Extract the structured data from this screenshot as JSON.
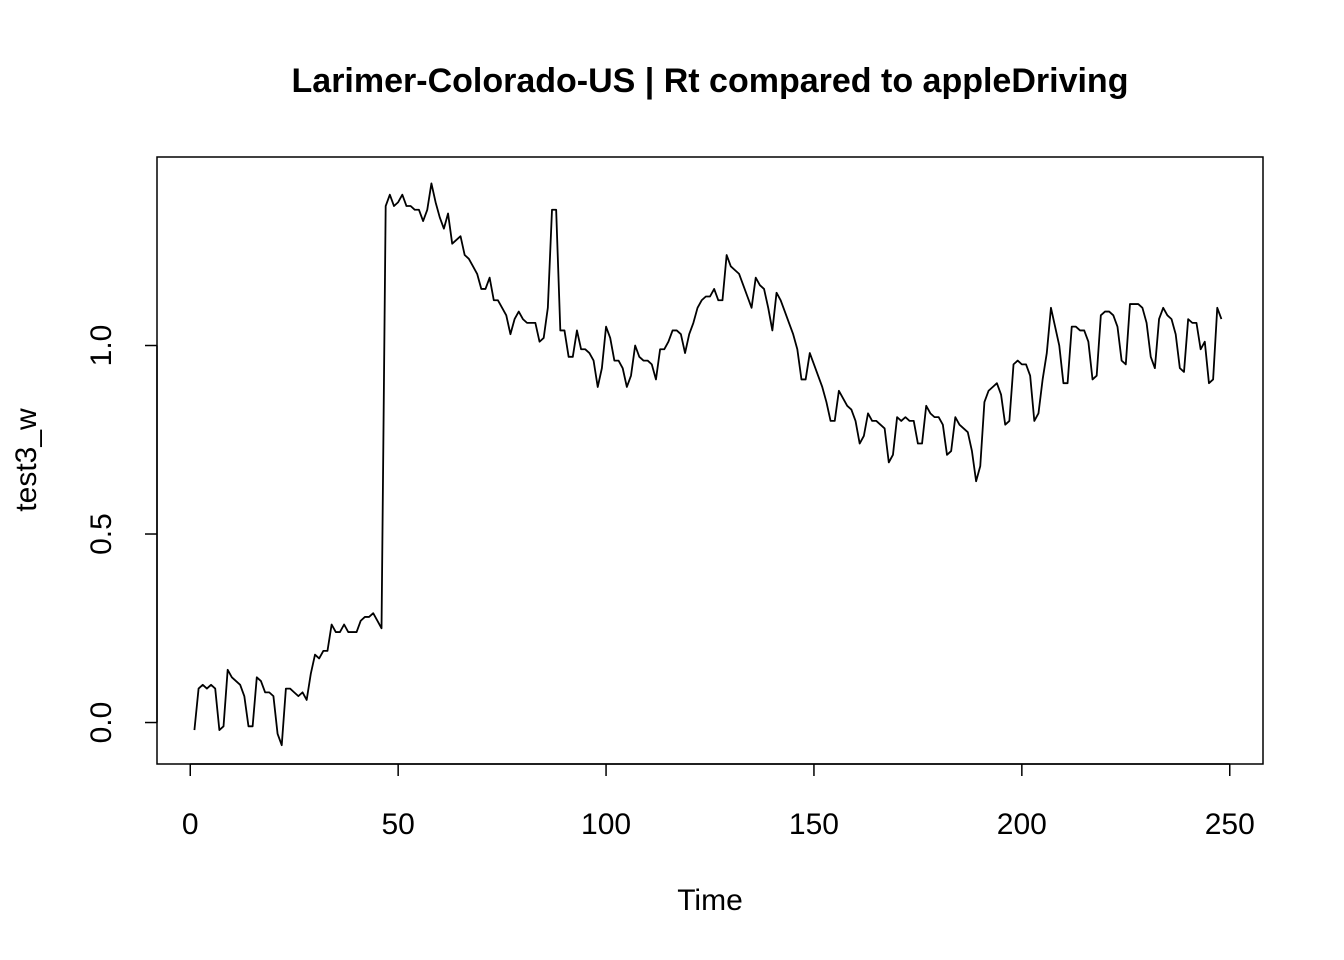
{
  "chart_data": {
    "type": "line",
    "title": "Larimer-Colorado-US | Rt compared to appleDriving",
    "xlabel": "Time",
    "ylabel": "test3_w",
    "xlim": [
      -8,
      258
    ],
    "ylim": [
      -0.11,
      1.5
    ],
    "x_ticks": [
      0,
      50,
      100,
      150,
      200,
      250
    ],
    "x_tick_labels": [
      "0",
      "50",
      "100",
      "150",
      "200",
      "250"
    ],
    "y_ticks": [
      0.0,
      0.5,
      1.0
    ],
    "y_tick_labels": [
      "0.0",
      "0.5",
      "1.0"
    ],
    "grid": false,
    "legend": "none",
    "series": [
      {
        "color": "#000000",
        "x": [
          1,
          2,
          3,
          4,
          5,
          6,
          7,
          8,
          9,
          10,
          11,
          12,
          13,
          14,
          15,
          16,
          17,
          18,
          19,
          20,
          21,
          22,
          23,
          24,
          25,
          26,
          27,
          28,
          29,
          30,
          31,
          32,
          33,
          34,
          35,
          36,
          37,
          38,
          39,
          40,
          41,
          42,
          43,
          44,
          45,
          46,
          47,
          48,
          49,
          50,
          51,
          52,
          53,
          54,
          55,
          56,
          57,
          58,
          59,
          60,
          61,
          62,
          63,
          64,
          65,
          66,
          67,
          68,
          69,
          70,
          71,
          72,
          73,
          74,
          75,
          76,
          77,
          78,
          79,
          80,
          81,
          82,
          83,
          84,
          85,
          86,
          87,
          88,
          89,
          90,
          91,
          92,
          93,
          94,
          95,
          96,
          97,
          98,
          99,
          100,
          101,
          102,
          103,
          104,
          105,
          106,
          107,
          108,
          109,
          110,
          111,
          112,
          113,
          114,
          115,
          116,
          117,
          118,
          119,
          120,
          121,
          122,
          123,
          124,
          125,
          126,
          127,
          128,
          129,
          130,
          131,
          132,
          133,
          134,
          135,
          136,
          137,
          138,
          139,
          140,
          141,
          142,
          143,
          144,
          145,
          146,
          147,
          148,
          149,
          150,
          151,
          152,
          153,
          154,
          155,
          156,
          157,
          158,
          159,
          160,
          161,
          162,
          163,
          164,
          165,
          166,
          167,
          168,
          169,
          170,
          171,
          172,
          173,
          174,
          175,
          176,
          177,
          178,
          179,
          180,
          181,
          182,
          183,
          184,
          185,
          186,
          187,
          188,
          189,
          190,
          191,
          192,
          193,
          194,
          195,
          196,
          197,
          198,
          199,
          200,
          201,
          202,
          203,
          204,
          205,
          206,
          207,
          208,
          209,
          210,
          211,
          212,
          213,
          214,
          215,
          216,
          217,
          218,
          219,
          220,
          221,
          222,
          223,
          224,
          225,
          226,
          227,
          228,
          229,
          230,
          231,
          232,
          233,
          234,
          235,
          236,
          237,
          238,
          239,
          240,
          241,
          242,
          243,
          244,
          245,
          246,
          247,
          248
        ],
        "y": [
          -0.02,
          0.09,
          0.1,
          0.09,
          0.1,
          0.09,
          -0.02,
          -0.01,
          0.14,
          0.12,
          0.11,
          0.1,
          0.07,
          -0.01,
          -0.01,
          0.12,
          0.11,
          0.08,
          0.08,
          0.07,
          -0.03,
          -0.06,
          0.09,
          0.09,
          0.08,
          0.07,
          0.08,
          0.06,
          0.13,
          0.18,
          0.17,
          0.19,
          0.19,
          0.26,
          0.24,
          0.24,
          0.26,
          0.24,
          0.24,
          0.24,
          0.27,
          0.28,
          0.28,
          0.29,
          0.27,
          0.25,
          1.37,
          1.4,
          1.37,
          1.38,
          1.4,
          1.37,
          1.37,
          1.36,
          1.36,
          1.33,
          1.36,
          1.43,
          1.38,
          1.34,
          1.31,
          1.35,
          1.27,
          1.28,
          1.29,
          1.24,
          1.23,
          1.21,
          1.19,
          1.15,
          1.15,
          1.18,
          1.12,
          1.12,
          1.1,
          1.08,
          1.03,
          1.07,
          1.09,
          1.07,
          1.06,
          1.06,
          1.06,
          1.01,
          1.02,
          1.1,
          1.36,
          1.36,
          1.04,
          1.04,
          0.97,
          0.97,
          1.04,
          0.99,
          0.99,
          0.98,
          0.96,
          0.89,
          0.94,
          1.05,
          1.02,
          0.96,
          0.96,
          0.94,
          0.89,
          0.92,
          1.0,
          0.97,
          0.96,
          0.96,
          0.95,
          0.91,
          0.99,
          0.99,
          1.01,
          1.04,
          1.04,
          1.03,
          0.98,
          1.03,
          1.06,
          1.1,
          1.12,
          1.13,
          1.13,
          1.15,
          1.12,
          1.12,
          1.24,
          1.21,
          1.2,
          1.19,
          1.16,
          1.13,
          1.1,
          1.18,
          1.16,
          1.15,
          1.1,
          1.04,
          1.14,
          1.12,
          1.09,
          1.06,
          1.03,
          0.99,
          0.91,
          0.91,
          0.98,
          0.95,
          0.92,
          0.89,
          0.85,
          0.8,
          0.8,
          0.88,
          0.86,
          0.84,
          0.83,
          0.8,
          0.74,
          0.76,
          0.82,
          0.8,
          0.8,
          0.79,
          0.78,
          0.69,
          0.71,
          0.81,
          0.8,
          0.81,
          0.8,
          0.8,
          0.74,
          0.74,
          0.84,
          0.82,
          0.81,
          0.81,
          0.79,
          0.71,
          0.72,
          0.81,
          0.79,
          0.78,
          0.77,
          0.72,
          0.64,
          0.68,
          0.85,
          0.88,
          0.89,
          0.9,
          0.87,
          0.79,
          0.8,
          0.95,
          0.96,
          0.95,
          0.95,
          0.92,
          0.8,
          0.82,
          0.91,
          0.98,
          1.1,
          1.05,
          1.0,
          0.9,
          0.9,
          1.05,
          1.05,
          1.04,
          1.04,
          1.01,
          0.91,
          0.92,
          1.08,
          1.09,
          1.09,
          1.08,
          1.05,
          0.96,
          0.95,
          1.11,
          1.11,
          1.11,
          1.1,
          1.06,
          0.97,
          0.94,
          1.07,
          1.1,
          1.08,
          1.07,
          1.03,
          0.94,
          0.93,
          1.07,
          1.06,
          1.06,
          0.99,
          1.01,
          0.9,
          0.91,
          1.1,
          1.07
        ]
      }
    ]
  }
}
